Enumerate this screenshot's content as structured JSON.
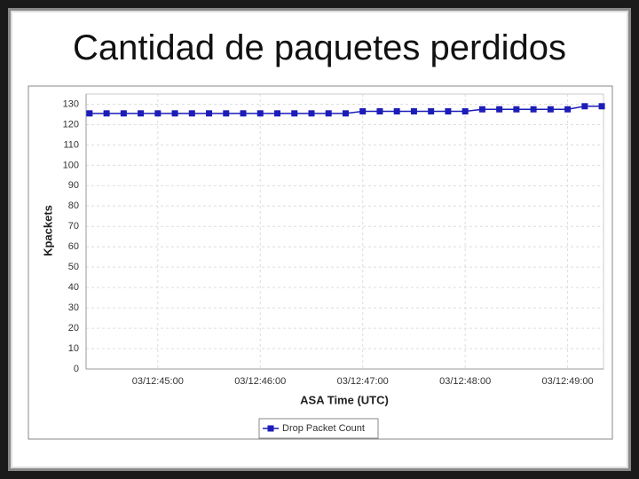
{
  "title": "Cantidad de paquetes perdidos",
  "chart_data": {
    "type": "line",
    "x_label": "ASA Time (UTC)",
    "y_label": "Kpackets",
    "x": [
      "03/12:44:20",
      "03/12:44:30",
      "03/12:44:40",
      "03/12:44:50",
      "03/12:45:00",
      "03/12:45:10",
      "03/12:45:20",
      "03/12:45:30",
      "03/12:45:40",
      "03/12:45:50",
      "03/12:46:00",
      "03/12:46:10",
      "03/12:46:20",
      "03/12:46:30",
      "03/12:46:40",
      "03/12:46:50",
      "03/12:47:00",
      "03/12:47:10",
      "03/12:47:20",
      "03/12:47:30",
      "03/12:47:40",
      "03/12:47:50",
      "03/12:48:00",
      "03/12:48:10",
      "03/12:48:20",
      "03/12:48:30",
      "03/12:48:40",
      "03/12:48:50",
      "03/12:49:00",
      "03/12:49:10",
      "03/12:49:20"
    ],
    "series": [
      {
        "name": "Drop Packet Count",
        "color": "#1c1cb8",
        "values": [
          125.5,
          125.5,
          125.5,
          125.5,
          125.5,
          125.5,
          125.5,
          125.5,
          125.5,
          125.5,
          125.5,
          125.5,
          125.5,
          125.5,
          125.5,
          125.5,
          126.5,
          126.5,
          126.5,
          126.5,
          126.5,
          126.5,
          126.5,
          127.5,
          127.5,
          127.5,
          127.5,
          127.5,
          127.5,
          129,
          129
        ]
      }
    ],
    "xlim": [
      "03/12:44:18",
      "03/12:49:21"
    ],
    "xticks": [
      "03/12:45:00",
      "03/12:46:00",
      "03/12:47:00",
      "03/12:48:00",
      "03/12:49:00"
    ],
    "ylim": [
      0,
      135
    ],
    "yticks": [
      0,
      10,
      20,
      30,
      40,
      50,
      60,
      70,
      80,
      90,
      100,
      110,
      120,
      130
    ],
    "grid": true,
    "legend": "bottom"
  }
}
